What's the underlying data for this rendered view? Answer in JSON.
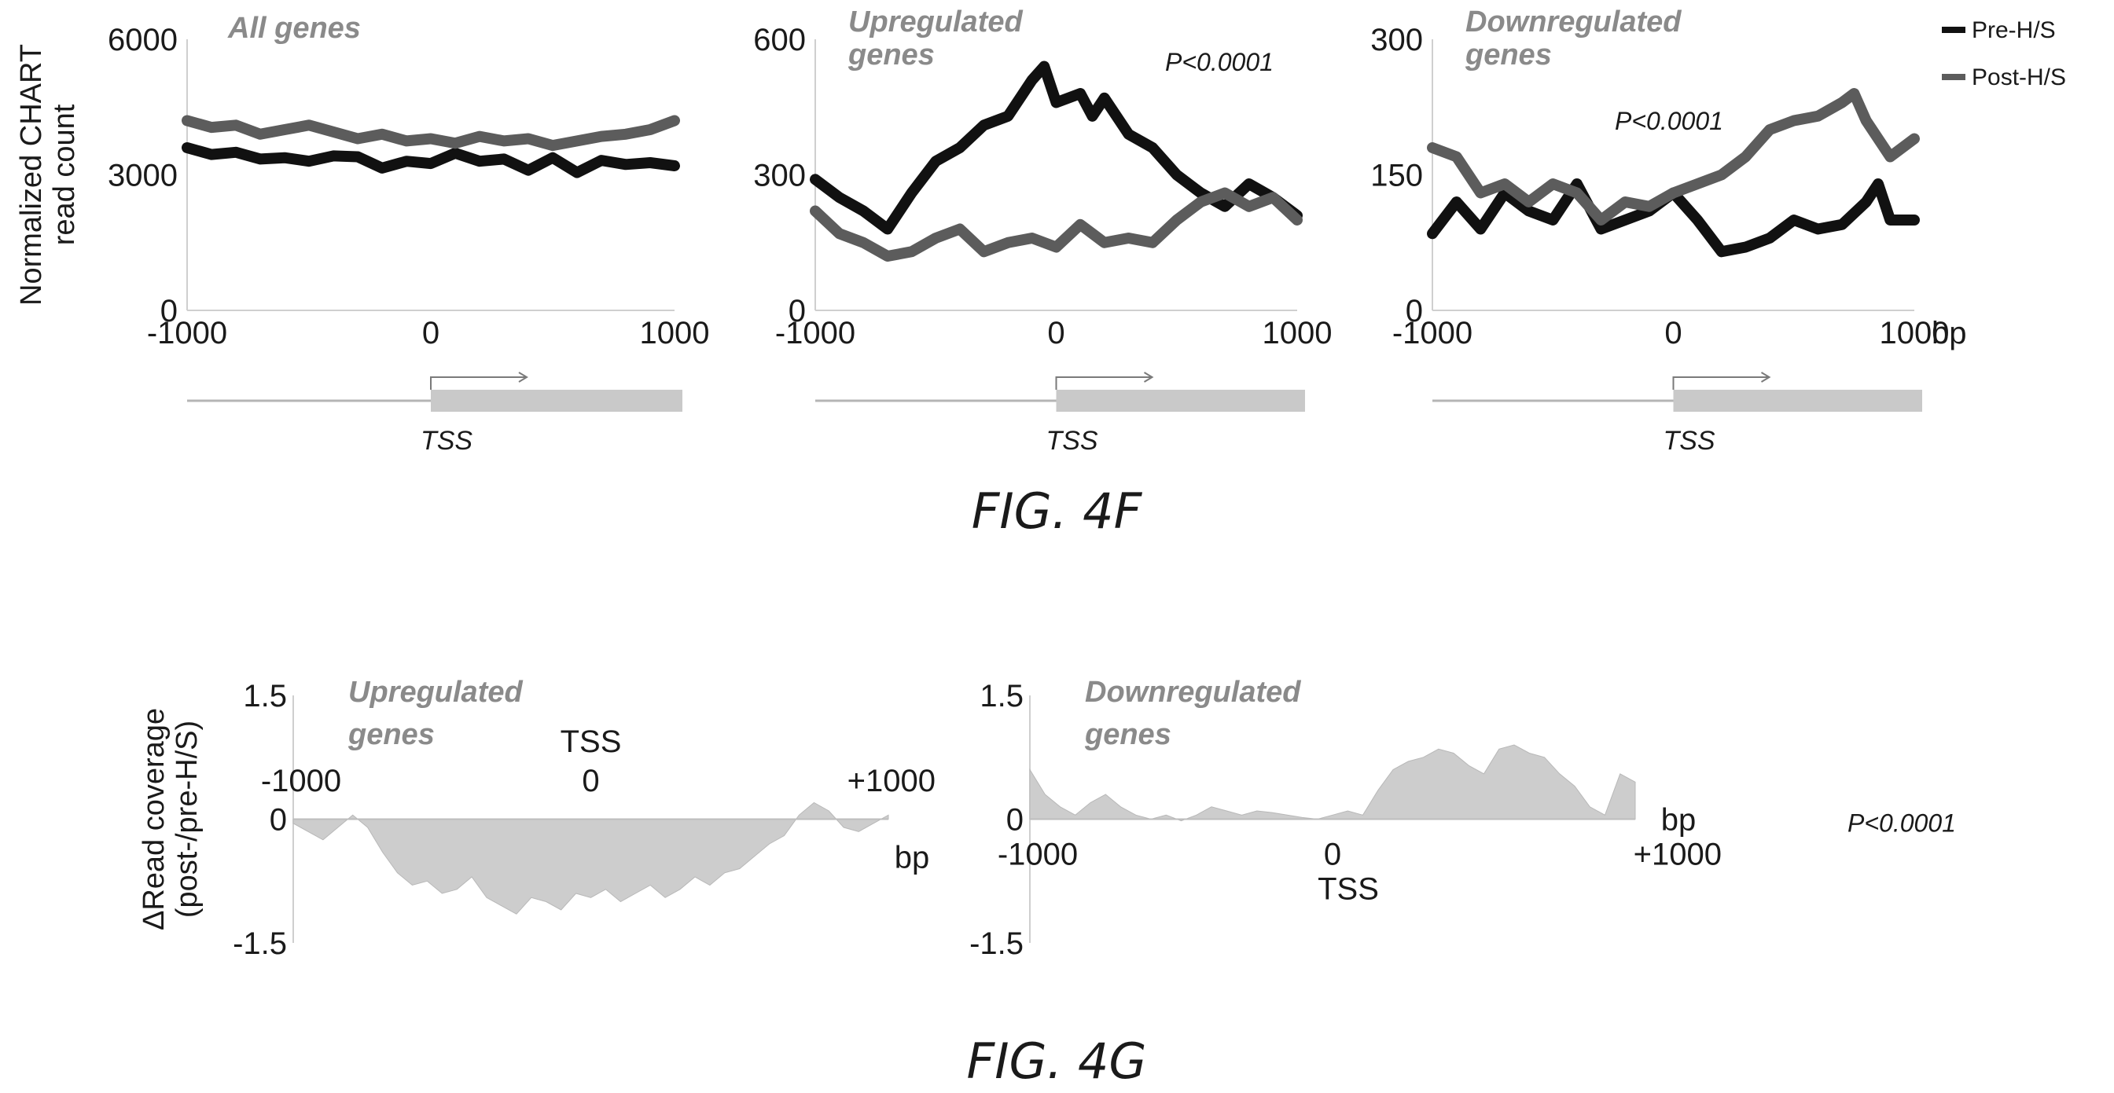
{
  "figure_captions": {
    "fig_4f": "FIG. 4F",
    "fig_4g": "FIG. 4G"
  },
  "legend": [
    {
      "name": "Pre-H/S",
      "color": "#111111"
    },
    {
      "name": "Post-H/S",
      "color": "#5c5c5c"
    }
  ],
  "chart_data": [
    {
      "type": "line",
      "title": "All genes",
      "ylabel": "Normalized CHART read count",
      "xlabel": "",
      "xlim": [
        -1000,
        1000
      ],
      "ylim": [
        0,
        6000
      ],
      "x_ticks": [
        "-1000",
        "0",
        "1000"
      ],
      "y_ticks": [
        "0",
        "3000",
        "6000"
      ],
      "tss_label": "TSS",
      "pvalue": "",
      "series": [
        {
          "name": "Pre-H/S",
          "x": [
            -1000,
            -900,
            -800,
            -700,
            -600,
            -500,
            -400,
            -300,
            -200,
            -100,
            0,
            100,
            200,
            300,
            400,
            500,
            600,
            700,
            800,
            900,
            1000
          ],
          "y": [
            3600,
            3450,
            3500,
            3350,
            3380,
            3300,
            3420,
            3400,
            3150,
            3300,
            3250,
            3480,
            3300,
            3350,
            3100,
            3380,
            3050,
            3320,
            3230,
            3270,
            3200
          ]
        },
        {
          "name": "Post-H/S",
          "x": [
            -1000,
            -900,
            -800,
            -700,
            -600,
            -500,
            -400,
            -300,
            -200,
            -100,
            0,
            100,
            200,
            300,
            400,
            500,
            600,
            700,
            800,
            900,
            1000
          ],
          "y": [
            4200,
            4050,
            4100,
            3900,
            4000,
            4100,
            3950,
            3800,
            3900,
            3750,
            3800,
            3700,
            3850,
            3750,
            3800,
            3650,
            3750,
            3850,
            3900,
            4000,
            4200
          ]
        }
      ]
    },
    {
      "type": "line",
      "title": "Upregulated genes",
      "ylabel": "",
      "xlabel": "",
      "xlim": [
        -1000,
        1000
      ],
      "ylim": [
        0,
        600
      ],
      "x_ticks": [
        "-1000",
        "0",
        "1000"
      ],
      "y_ticks": [
        "0",
        "300",
        "600"
      ],
      "tss_label": "TSS",
      "pvalue": "P<0.0001",
      "series": [
        {
          "name": "Pre-H/S",
          "x": [
            -1000,
            -900,
            -800,
            -700,
            -600,
            -500,
            -400,
            -300,
            -200,
            -100,
            -50,
            0,
            100,
            150,
            200,
            300,
            400,
            500,
            600,
            700,
            800,
            900,
            1000
          ],
          "y": [
            290,
            250,
            220,
            180,
            260,
            330,
            360,
            410,
            430,
            510,
            540,
            460,
            480,
            430,
            470,
            390,
            360,
            300,
            260,
            230,
            280,
            250,
            210
          ]
        },
        {
          "name": "Post-H/S",
          "x": [
            -1000,
            -900,
            -800,
            -700,
            -600,
            -500,
            -400,
            -300,
            -200,
            -100,
            0,
            100,
            200,
            300,
            400,
            500,
            600,
            700,
            800,
            900,
            1000
          ],
          "y": [
            220,
            170,
            150,
            120,
            130,
            160,
            180,
            130,
            150,
            160,
            140,
            190,
            150,
            160,
            150,
            200,
            240,
            260,
            230,
            250,
            200
          ]
        }
      ]
    },
    {
      "type": "line",
      "title": "Downregulated genes",
      "ylabel": "",
      "xlabel": "bp",
      "xlim": [
        -1000,
        1000
      ],
      "ylim": [
        0,
        300
      ],
      "x_ticks": [
        "-1000",
        "0",
        "1000"
      ],
      "y_ticks": [
        "0",
        "150",
        "300"
      ],
      "tss_label": "TSS",
      "pvalue": "P<0.0001",
      "series": [
        {
          "name": "Pre-H/S",
          "x": [
            -1000,
            -900,
            -800,
            -700,
            -600,
            -500,
            -400,
            -300,
            -200,
            -100,
            0,
            100,
            200,
            300,
            400,
            500,
            600,
            700,
            800,
            850,
            900,
            1000
          ],
          "y": [
            85,
            120,
            90,
            130,
            110,
            100,
            140,
            90,
            100,
            110,
            130,
            100,
            65,
            70,
            80,
            100,
            90,
            95,
            120,
            140,
            100,
            100
          ]
        },
        {
          "name": "Post-H/S",
          "x": [
            -1000,
            -900,
            -800,
            -700,
            -600,
            -500,
            -400,
            -300,
            -200,
            -100,
            0,
            100,
            200,
            300,
            400,
            500,
            600,
            700,
            750,
            800,
            900,
            1000
          ],
          "y": [
            180,
            170,
            130,
            140,
            120,
            140,
            130,
            100,
            120,
            115,
            130,
            140,
            150,
            170,
            200,
            210,
            215,
            230,
            240,
            210,
            170,
            190
          ]
        }
      ]
    },
    {
      "type": "area",
      "title": "Upregulated genes",
      "ylabel": "ΔRead coverage (post-/pre-H/S)",
      "xlabel": "bp",
      "xlim": [
        -1000,
        1000
      ],
      "ylim": [
        -1.5,
        1.5
      ],
      "x_ticks": [
        "-1000",
        "0",
        "+1000"
      ],
      "y_ticks": [
        "1.5",
        "0",
        "-1.5"
      ],
      "tss_label": "TSS",
      "pvalue": "",
      "x": [
        -1000,
        -950,
        -900,
        -850,
        -800,
        -750,
        -700,
        -650,
        -600,
        -550,
        -500,
        -450,
        -400,
        -350,
        -300,
        -250,
        -200,
        -150,
        -100,
        -50,
        0,
        50,
        100,
        150,
        200,
        250,
        300,
        350,
        400,
        450,
        500,
        550,
        600,
        650,
        700,
        750,
        800,
        850,
        900,
        950,
        1000
      ],
      "y": [
        -0.05,
        -0.15,
        -0.25,
        -0.1,
        0.05,
        -0.1,
        -0.4,
        -0.65,
        -0.8,
        -0.75,
        -0.9,
        -0.85,
        -0.7,
        -0.95,
        -1.05,
        -1.15,
        -0.95,
        -1.0,
        -1.1,
        -0.9,
        -0.95,
        -0.85,
        -1.0,
        -0.9,
        -0.8,
        -0.95,
        -0.85,
        -0.7,
        -0.8,
        -0.65,
        -0.6,
        -0.45,
        -0.3,
        -0.2,
        0.05,
        0.2,
        0.1,
        -0.1,
        -0.15,
        -0.05,
        0.05
      ]
    },
    {
      "type": "area",
      "title": "Downregulated genes",
      "ylabel": "",
      "xlabel": "bp",
      "xlim": [
        -1000,
        1000
      ],
      "ylim": [
        -1.5,
        1.5
      ],
      "x_ticks": [
        "-1000",
        "0",
        "+1000"
      ],
      "y_ticks": [
        "1.5",
        "0",
        "-1.5"
      ],
      "tss_label": "TSS",
      "pvalue": "P<0.0001",
      "x": [
        -1000,
        -950,
        -900,
        -850,
        -800,
        -750,
        -700,
        -650,
        -600,
        -550,
        -500,
        -450,
        -400,
        -350,
        -300,
        -250,
        -200,
        -150,
        -100,
        -50,
        0,
        50,
        100,
        150,
        200,
        250,
        300,
        350,
        400,
        450,
        500,
        550,
        600,
        650,
        700,
        750,
        800,
        850,
        900,
        950,
        1000
      ],
      "y": [
        0.6,
        0.3,
        0.15,
        0.05,
        0.2,
        0.3,
        0.15,
        0.05,
        0.0,
        0.05,
        -0.02,
        0.05,
        0.15,
        0.1,
        0.05,
        0.1,
        0.08,
        0.05,
        0.02,
        0.0,
        0.05,
        0.1,
        0.05,
        0.35,
        0.6,
        0.7,
        0.75,
        0.85,
        0.8,
        0.65,
        0.55,
        0.85,
        0.9,
        0.8,
        0.75,
        0.55,
        0.4,
        0.15,
        0.05,
        0.55,
        0.45
      ]
    }
  ]
}
